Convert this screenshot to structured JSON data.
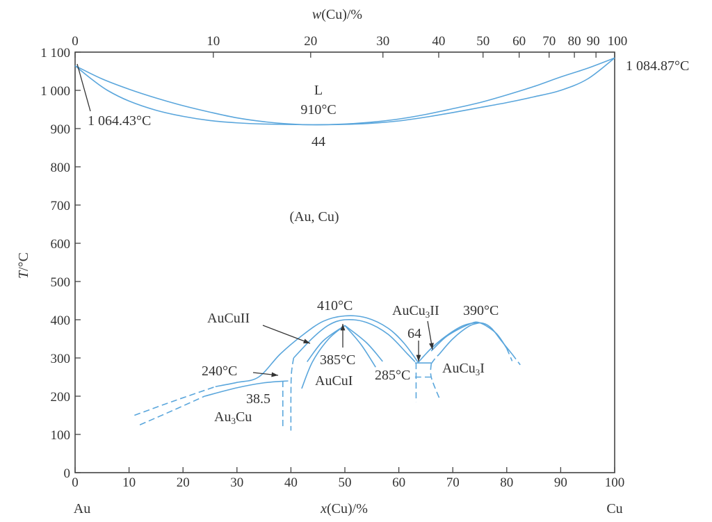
{
  "chart_data": {
    "type": "line",
    "title": "",
    "xlabel": "x(Cu)/%",
    "x2label": "w(Cu)/%",
    "ylabel": "T/°C",
    "xlim": [
      0,
      100
    ],
    "ylim": [
      0,
      1100
    ],
    "grid": false,
    "x_ticks": [
      0,
      10,
      20,
      30,
      40,
      50,
      60,
      70,
      80,
      90,
      100
    ],
    "x2_ticks": [
      0,
      10,
      20,
      30,
      40,
      50,
      60,
      70,
      80,
      90,
      100
    ],
    "y_ticks": [
      0,
      100,
      200,
      300,
      400,
      500,
      600,
      700,
      800,
      900,
      1000,
      1100
    ],
    "y_tick_labels": [
      "0",
      "100",
      "200",
      "300",
      "400",
      "500",
      "600",
      "700",
      "800",
      "900",
      "1 000",
      "1 100"
    ],
    "end_labels": {
      "left": "Au",
      "right": "Cu"
    },
    "line_color": "#5aa6dc",
    "curves": [
      {
        "style": "solid",
        "points": [
          [
            0,
            1064.43
          ],
          [
            5,
            1030
          ],
          [
            10,
            1003
          ],
          [
            15,
            980
          ],
          [
            20,
            960
          ],
          [
            25,
            943
          ],
          [
            30,
            928
          ],
          [
            35,
            918
          ],
          [
            40,
            912
          ],
          [
            44,
            910
          ],
          [
            50,
            912
          ],
          [
            55,
            917
          ],
          [
            60,
            925
          ],
          [
            65,
            937
          ],
          [
            70,
            952
          ],
          [
            75,
            968
          ],
          [
            80,
            988
          ],
          [
            85,
            1010
          ],
          [
            90,
            1035
          ],
          [
            95,
            1058
          ],
          [
            100,
            1084.87
          ]
        ]
      },
      {
        "style": "solid",
        "points": [
          [
            0,
            1064.43
          ],
          [
            3,
            1030
          ],
          [
            6,
            1000
          ],
          [
            10,
            972
          ],
          [
            15,
            948
          ],
          [
            20,
            932
          ],
          [
            25,
            921
          ],
          [
            30,
            915
          ],
          [
            35,
            912
          ],
          [
            44,
            910
          ],
          [
            50,
            911
          ],
          [
            55,
            914
          ],
          [
            60,
            920
          ],
          [
            65,
            930
          ],
          [
            70,
            942
          ],
          [
            75,
            955
          ],
          [
            80,
            968
          ],
          [
            85,
            983
          ],
          [
            90,
            1000
          ],
          [
            95,
            1030
          ],
          [
            100,
            1084.87
          ]
        ]
      },
      {
        "style": "solid",
        "points": [
          [
            26,
            225
          ],
          [
            30,
            236
          ],
          [
            34,
            250
          ],
          [
            38,
            310
          ],
          [
            42,
            358
          ],
          [
            46,
            396
          ],
          [
            50,
            410
          ],
          [
            54,
            405
          ],
          [
            58,
            378
          ],
          [
            61,
            338
          ],
          [
            63.5,
            290
          ]
        ]
      },
      {
        "style": "dashed",
        "points": [
          [
            11,
            150
          ],
          [
            18,
            186
          ],
          [
            26,
            225
          ]
        ]
      },
      {
        "style": "solid",
        "points": [
          [
            24,
            200
          ],
          [
            30,
            222
          ],
          [
            35,
            235
          ],
          [
            39.5,
            240
          ]
        ]
      },
      {
        "style": "dashed",
        "points": [
          [
            12,
            125
          ],
          [
            18,
            162
          ],
          [
            24,
            200
          ]
        ]
      },
      {
        "style": "dashed",
        "points": [
          [
            38.5,
            240
          ],
          [
            38.5,
            115
          ]
        ]
      },
      {
        "style": "solid",
        "points": [
          [
            40.5,
            300
          ],
          [
            44,
            352
          ],
          [
            47,
            386
          ],
          [
            50,
            400
          ],
          [
            54,
            393
          ],
          [
            58,
            362
          ],
          [
            61.5,
            312
          ],
          [
            63,
            290
          ]
        ]
      },
      {
        "style": "dashed",
        "points": [
          [
            40.5,
            300
          ],
          [
            40.1,
            260
          ],
          [
            40,
            200
          ],
          [
            40,
            110
          ]
        ]
      },
      {
        "style": "solid",
        "points": [
          [
            42,
            220
          ],
          [
            44,
            290
          ],
          [
            47,
            350
          ],
          [
            50,
            385
          ]
        ]
      },
      {
        "style": "solid",
        "points": [
          [
            43,
            290
          ],
          [
            46,
            345
          ],
          [
            50,
            385
          ]
        ]
      },
      {
        "style": "solid",
        "points": [
          [
            50,
            385
          ],
          [
            53,
            335
          ],
          [
            55.7,
            276
          ]
        ]
      },
      {
        "style": "solid",
        "points": [
          [
            50,
            385
          ],
          [
            54,
            340
          ],
          [
            57,
            291
          ]
        ]
      },
      {
        "style": "solid",
        "points": [
          [
            63.5,
            287
          ],
          [
            66,
            325
          ],
          [
            69,
            360
          ],
          [
            72,
            385
          ],
          [
            75,
            392
          ],
          [
            77,
            380
          ],
          [
            79,
            345
          ],
          [
            81,
            310
          ]
        ]
      },
      {
        "style": "dashed",
        "points": [
          [
            81,
            310
          ],
          [
            82.5,
            282
          ]
        ]
      },
      {
        "style": "solid",
        "points": [
          [
            66,
            318
          ],
          [
            69,
            358
          ],
          [
            73,
            388
          ],
          [
            75,
            392
          ],
          [
            78,
            365
          ],
          [
            80,
            325
          ]
        ]
      },
      {
        "style": "dashed",
        "points": [
          [
            80,
            325
          ],
          [
            81,
            292
          ]
        ]
      },
      {
        "style": "solid",
        "points": [
          [
            67.5,
            310
          ],
          [
            70,
            350
          ],
          [
            73,
            383
          ],
          [
            75,
            392
          ]
        ]
      },
      {
        "style": "dashed",
        "points": [
          [
            66,
            285
          ],
          [
            66.8,
            300
          ],
          [
            67.5,
            310
          ]
        ]
      },
      {
        "style": "solid",
        "points": [
          [
            63,
            287
          ],
          [
            66,
            287
          ]
        ]
      },
      {
        "style": "dashed",
        "points": [
          [
            63,
            250
          ],
          [
            66,
            250
          ]
        ]
      },
      {
        "style": "dashed",
        "points": [
          [
            63.2,
            287
          ],
          [
            63.2,
            185
          ]
        ]
      },
      {
        "style": "dashed",
        "points": [
          [
            66,
            285
          ],
          [
            66,
            250
          ],
          [
            67.5,
            195
          ]
        ]
      }
    ],
    "annotations": {
      "liquid": "L",
      "min_temp": "910°C",
      "min_comp": "44",
      "au_melt": "1 064.43°C",
      "cu_melt": "1 084.87°C",
      "solid_solution": "(Au, Cu)",
      "aucu2": "AuCuII",
      "t410": "410°C",
      "t385": "385°C",
      "aucu1": "AuCuI",
      "t240": "240°C",
      "c385": "38.5",
      "au3cu": "Au3Cu",
      "t285": "285°C",
      "c64": "64",
      "aucu3_2": "AuCu3II",
      "t390": "390°C",
      "aucu3_1": "AuCu3I"
    }
  }
}
